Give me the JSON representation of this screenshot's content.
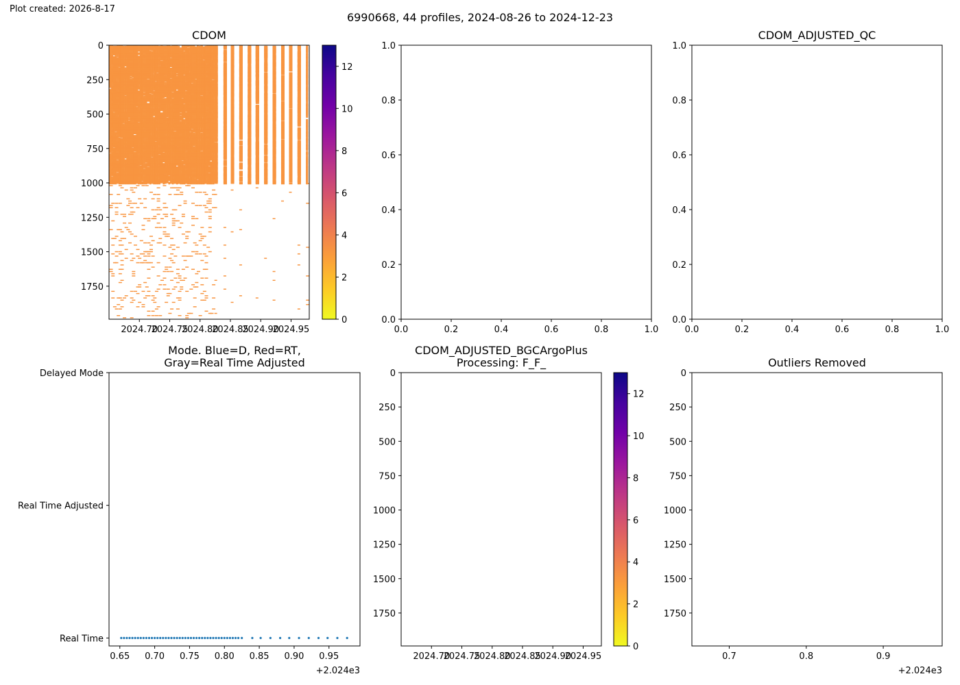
{
  "figure": {
    "created_label": "Plot created: 2026-8-17",
    "suptitle": "6990668, 44 profiles, 2024-08-26 to 2024-12-23"
  },
  "colors": {
    "cdom_fill": "#f89540",
    "colormap": [
      "#f0f921",
      "#fdca26",
      "#fb9f3a",
      "#ed7953",
      "#d8576b",
      "#bd3786",
      "#9c179e",
      "#7201a8",
      "#46039f",
      "#0d0887"
    ],
    "mode_points": "#1f77b4"
  },
  "chart_data": [
    {
      "id": "cdom",
      "type": "heatmap",
      "title": "CDOM",
      "xlabel": "",
      "ylabel": "",
      "x_ticks": [
        "2024.70",
        "2024.75",
        "2024.80",
        "2024.85",
        "2024.90",
        "2024.95"
      ],
      "x_tick_values": [
        2024.7,
        2024.75,
        2024.8,
        2024.85,
        2024.9,
        2024.95
      ],
      "xlim": [
        2024.65,
        2024.98
      ],
      "y_ticks": [
        "0",
        "250",
        "500",
        "750",
        "1000",
        "1250",
        "1500",
        "1750"
      ],
      "y_tick_values": [
        0,
        250,
        500,
        750,
        1000,
        1250,
        1500,
        1750
      ],
      "ylim": [
        1990,
        0
      ],
      "value_approx": 3,
      "profile_times": [
        2024.652,
        2024.655,
        2024.658,
        2024.661,
        2024.664,
        2024.667,
        2024.67,
        2024.674,
        2024.677,
        2024.68,
        2024.683,
        2024.686,
        2024.689,
        2024.692,
        2024.696,
        2024.699,
        2024.702,
        2024.705,
        2024.708,
        2024.711,
        2024.714,
        2024.718,
        2024.721,
        2024.724,
        2024.727,
        2024.73,
        2024.733,
        2024.736,
        2024.74,
        2024.743,
        2024.746,
        2024.749,
        2024.752,
        2024.755,
        2024.758,
        2024.762,
        2024.765,
        2024.768,
        2024.771,
        2024.774,
        2024.777,
        2024.78,
        2024.784,
        2024.787,
        2024.79,
        2024.793,
        2024.796,
        2024.799,
        2024.802,
        2024.806,
        2024.809,
        2024.812,
        2024.815,
        2024.818,
        2024.821,
        2024.825,
        2024.84,
        2024.852,
        2024.866,
        2024.88,
        2024.893,
        2024.907,
        2024.921,
        2024.935,
        2024.948,
        2024.962,
        2024.976
      ],
      "dense_depth_max": 1000,
      "sparse_depth_max": 1990,
      "colorbar": {
        "ticks": [
          "0",
          "2",
          "4",
          "6",
          "8",
          "10",
          "12"
        ],
        "tick_values": [
          0,
          2,
          4,
          6,
          8,
          10,
          12
        ],
        "range": [
          0,
          13
        ]
      }
    },
    {
      "id": "empty_top_middle",
      "type": "scatter",
      "title": "",
      "x_ticks": [
        "0.0",
        "0.2",
        "0.4",
        "0.6",
        "0.8",
        "1.0"
      ],
      "y_ticks": [
        "0.0",
        "0.2",
        "0.4",
        "0.6",
        "0.8",
        "1.0"
      ],
      "xlim": [
        0,
        1
      ],
      "ylim": [
        0,
        1
      ]
    },
    {
      "id": "cdom_adjusted_qc",
      "type": "scatter",
      "title": "CDOM_ADJUSTED_QC",
      "x_ticks": [
        "0.0",
        "0.2",
        "0.4",
        "0.6",
        "0.8",
        "1.0"
      ],
      "y_ticks": [
        "0.0",
        "0.2",
        "0.4",
        "0.6",
        "0.8",
        "1.0"
      ],
      "xlim": [
        0,
        1
      ],
      "ylim": [
        0,
        1
      ]
    },
    {
      "id": "mode",
      "type": "scatter",
      "title": "Mode. Blue=D, Red=RT,\nGray=Real Time Adjusted",
      "y_ticks": [
        "Real Time",
        "Real Time Adjusted",
        "Delayed Mode"
      ],
      "y_tick_values": [
        0,
        1,
        2
      ],
      "x_ticks": [
        "0.65",
        "0.70",
        "0.75",
        "0.80",
        "0.85",
        "0.90",
        "0.95"
      ],
      "x_tick_values": [
        0.65,
        0.7,
        0.75,
        0.8,
        0.85,
        0.9,
        0.95
      ],
      "x_offset_label": "+2.024e3",
      "xlim": [
        0.6345,
        0.9945
      ],
      "ylim": [
        -0.06,
        2.0
      ],
      "x": [
        0.652,
        0.656,
        0.66,
        0.664,
        0.668,
        0.672,
        0.676,
        0.68,
        0.684,
        0.688,
        0.692,
        0.696,
        0.7,
        0.704,
        0.708,
        0.712,
        0.716,
        0.72,
        0.724,
        0.728,
        0.732,
        0.736,
        0.74,
        0.744,
        0.748,
        0.752,
        0.756,
        0.76,
        0.764,
        0.768,
        0.772,
        0.776,
        0.78,
        0.784,
        0.788,
        0.792,
        0.796,
        0.8,
        0.804,
        0.808,
        0.812,
        0.816,
        0.82,
        0.825,
        0.84,
        0.852,
        0.866,
        0.88,
        0.893,
        0.907,
        0.921,
        0.935,
        0.948,
        0.962,
        0.976
      ],
      "y_value": 0
    },
    {
      "id": "cdom_adjusted_bgcargoplus",
      "type": "heatmap",
      "title": "CDOM_ADJUSTED_BGCArgoPlus\nProcessing: F_F_",
      "x_ticks": [
        "2024.70",
        "2024.75",
        "2024.80",
        "2024.85",
        "2024.90",
        "2024.95"
      ],
      "x_tick_values": [
        2024.7,
        2024.75,
        2024.8,
        2024.85,
        2024.9,
        2024.95
      ],
      "xlim": [
        2024.65,
        2024.98
      ],
      "y_ticks": [
        "0",
        "250",
        "500",
        "750",
        "1000",
        "1250",
        "1500",
        "1750"
      ],
      "y_tick_values": [
        0,
        250,
        500,
        750,
        1000,
        1250,
        1500,
        1750
      ],
      "ylim": [
        1990,
        0
      ],
      "colorbar": {
        "ticks": [
          "0",
          "2",
          "4",
          "6",
          "8",
          "10",
          "12"
        ],
        "tick_values": [
          0,
          2,
          4,
          6,
          8,
          10,
          12
        ],
        "range": [
          0,
          13
        ]
      }
    },
    {
      "id": "outliers_removed",
      "type": "scatter",
      "title": "Outliers Removed",
      "x_ticks": [
        "0.7",
        "0.8",
        "0.9"
      ],
      "x_tick_values": [
        0.7,
        0.8,
        0.9
      ],
      "x_offset_label": "+2.024e3",
      "xlim": [
        0.6515,
        0.9765
      ],
      "y_ticks": [
        "0",
        "250",
        "500",
        "750",
        "1000",
        "1250",
        "1500",
        "1750"
      ],
      "y_tick_values": [
        0,
        250,
        500,
        750,
        1000,
        1250,
        1500,
        1750
      ],
      "ylim": [
        1990,
        0
      ]
    }
  ]
}
